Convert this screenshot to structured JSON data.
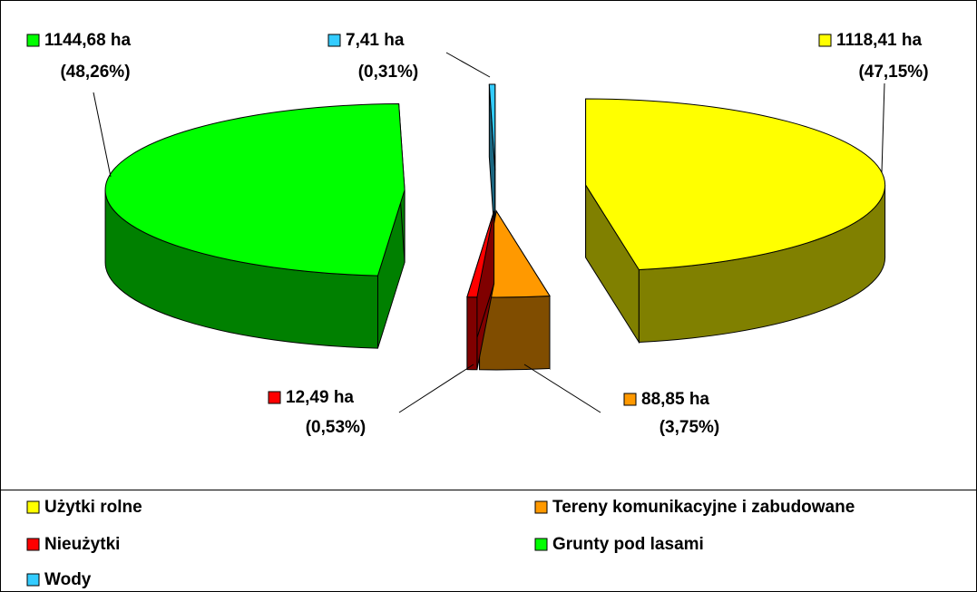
{
  "chart_data": {
    "type": "pie",
    "categories": [
      "Użytki rolne",
      "Tereny komunikacyjne i zabudowane",
      "Nieużytki",
      "Grunty pod lasami",
      "Wody"
    ],
    "values": [
      47.15,
      3.75,
      0.53,
      48.26,
      0.31
    ],
    "value_labels": [
      "(47,15%)",
      "(3,75%)",
      "(0,53%)",
      "(48,26%)",
      "(0,31%)"
    ],
    "areas": [
      1118.41,
      88.85,
      12.49,
      1144.68,
      7.41
    ],
    "area_labels": [
      "1118,41 ha",
      "88,85 ha",
      "12,49 ha",
      "1144,68 ha",
      "7,41 ha"
    ],
    "colors": [
      "#ffff00",
      "#ff9900",
      "#ff0000",
      "#00ff00",
      "#33ccff"
    ],
    "legend": "bottom"
  }
}
